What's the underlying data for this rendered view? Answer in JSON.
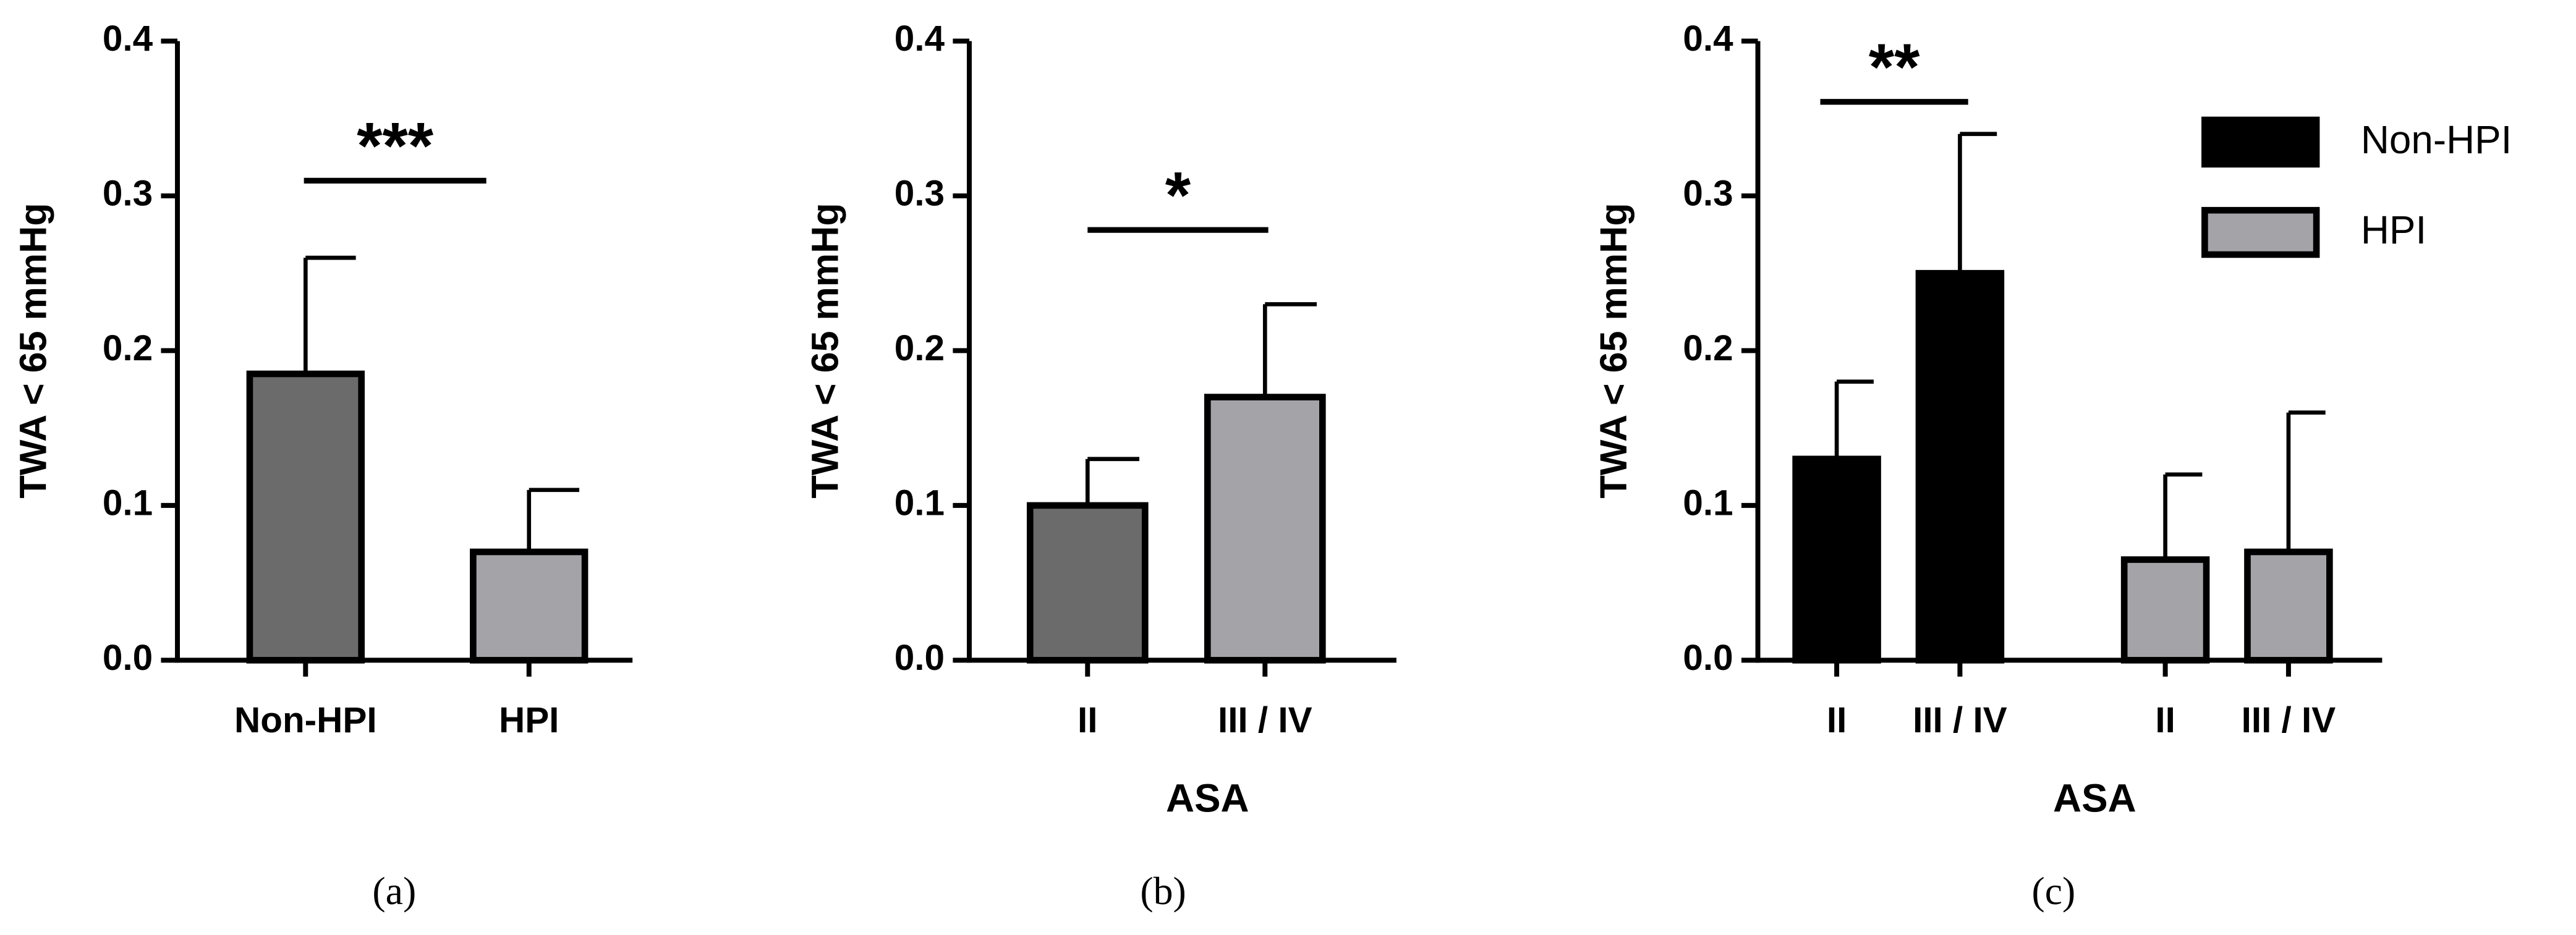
{
  "chart_data": [
    {
      "type": "bar",
      "ylabel": "TWA < 65 mmHg",
      "categories": [
        "Non-HPI",
        "HPI"
      ],
      "values": [
        0.185,
        0.07
      ],
      "errors": [
        0.075,
        0.04
      ],
      "colors": [
        "#6b6b6b",
        "#a3a3a8"
      ],
      "ylim": [
        0,
        0.4
      ],
      "yticks": [
        {
          "value": 0,
          "label": "0.0"
        },
        0.1,
        0.2,
        0.3,
        0.4
      ],
      "annotations": [
        {
          "text": "***"
        }
      ],
      "caption": "(a)"
    },
    {
      "type": "bar",
      "ylabel": "TWA < 65 mmHg",
      "xlabel": "ASA",
      "categories": [
        "II",
        "III / IV"
      ],
      "values": [
        0.1,
        0.17
      ],
      "errors": [
        0.03,
        0.06
      ],
      "colors": [
        "#6b6b6b",
        "#a3a3a8"
      ],
      "ylim": [
        0,
        0.4
      ],
      "yticks": [
        {
          "value": 0,
          "label": "0.0"
        },
        0.1,
        0.2,
        0.3,
        0.4
      ],
      "annotations": [
        {
          "text": "*"
        }
      ],
      "caption": "(b)"
    },
    {
      "type": "bar",
      "ylabel": "TWA < 65 mmHg",
      "xlabel": "ASA",
      "categories": [
        "II",
        "III / IV",
        "II",
        "III / IV"
      ],
      "series": [
        {
          "name": "Non-HPI",
          "color": "#000000",
          "values": [
            0.13,
            0.25,
            null,
            null
          ],
          "errors": [
            0.05,
            0.09,
            null,
            null
          ]
        },
        {
          "name": "HPI",
          "color": "#a3a3a8",
          "values": [
            null,
            null,
            0.065,
            0.07
          ],
          "errors": [
            null,
            null,
            0.055,
            0.09
          ]
        }
      ],
      "ylim": [
        0,
        0.4
      ],
      "yticks": [
        {
          "value": 0,
          "label": "0.0"
        },
        0.1,
        0.2,
        0.3,
        0.4
      ],
      "annotations": [
        {
          "text": "**"
        }
      ],
      "legend": "upper right",
      "caption": "(c)"
    }
  ]
}
